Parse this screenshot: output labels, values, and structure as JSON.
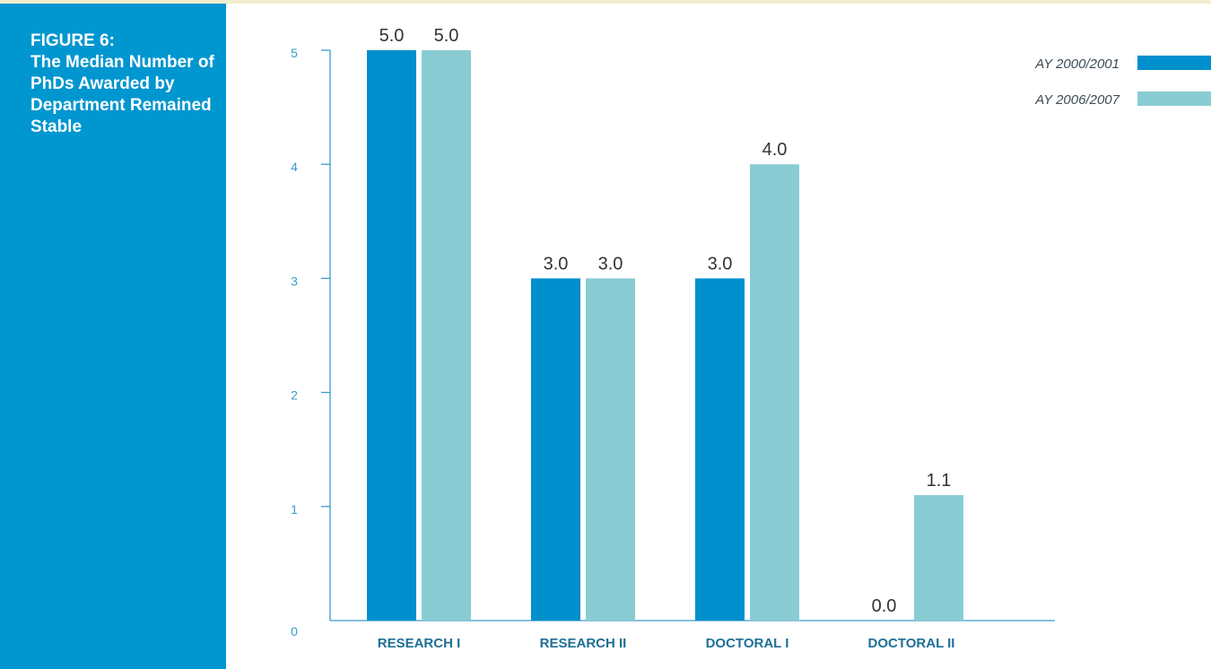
{
  "figure": {
    "label": "FIGURE 6:",
    "title": "The Median Number of PhDs Awarded by Department Remained Stable"
  },
  "colors": {
    "sidebar": "#0096cf",
    "axis": "#3a9cc9",
    "series_2000": "#008fcd",
    "series_2006": "#8accd3"
  },
  "chart_data": {
    "type": "bar",
    "categories": [
      "RESEARCH I",
      "RESEARCH II",
      "DOCTORAL I",
      "DOCTORAL II"
    ],
    "series": [
      {
        "name": "AY 2000/2001",
        "values": [
          5.0,
          3.0,
          3.0,
          0.0
        ]
      },
      {
        "name": "AY 2006/2007",
        "values": [
          5.0,
          3.0,
          4.0,
          1.1
        ]
      }
    ],
    "data_labels": [
      [
        "5.0",
        "3.0",
        "3.0",
        "0.0"
      ],
      [
        "5.0",
        "3.0",
        "4.0",
        "1.1"
      ]
    ],
    "ylim": [
      0,
      5
    ],
    "yticks": [
      0,
      1,
      2,
      3,
      4,
      5
    ],
    "xlabel": "",
    "ylabel": "",
    "grid": false,
    "legend_position": "top-right"
  }
}
